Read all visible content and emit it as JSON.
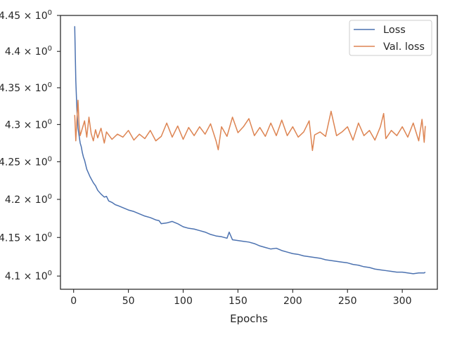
{
  "chart_data": {
    "type": "line",
    "xlabel": "Epochs",
    "ylabel": "",
    "title": "",
    "xlim": [
      -12,
      332
    ],
    "ylim": [
      4.083,
      4.45
    ],
    "x_ticks": [
      0,
      50,
      100,
      150,
      200,
      250,
      300
    ],
    "y_ticks": [
      {
        "value": 4.1,
        "base": "4.1",
        "suffix": "× 10",
        "exp": "0"
      },
      {
        "value": 4.15,
        "base": "4.15",
        "suffix": "× 10",
        "exp": "0"
      },
      {
        "value": 4.2,
        "base": "4.2",
        "suffix": "× 10",
        "exp": "0"
      },
      {
        "value": 4.25,
        "base": "4.25",
        "suffix": "× 10",
        "exp": "0"
      },
      {
        "value": 4.3,
        "base": "4.3",
        "suffix": "× 10",
        "exp": "0"
      },
      {
        "value": 4.35,
        "base": "4.35",
        "suffix": "× 10",
        "exp": "0"
      },
      {
        "value": 4.4,
        "base": "4.4",
        "suffix": "× 10",
        "exp": "0"
      },
      {
        "value": 4.45,
        "base": "4.45",
        "suffix": "× 10",
        "exp": "0"
      }
    ],
    "log_scale_y": true,
    "grid": false,
    "legend_position": "top-right",
    "series": [
      {
        "name": "Loss",
        "color": "#4c72b0",
        "x": [
          1,
          2,
          3,
          4,
          5,
          6,
          7,
          8,
          9,
          10,
          12,
          15,
          18,
          20,
          22,
          25,
          28,
          30,
          32,
          35,
          38,
          40,
          45,
          50,
          55,
          60,
          65,
          70,
          75,
          78,
          80,
          85,
          90,
          95,
          100,
          105,
          110,
          115,
          120,
          125,
          130,
          135,
          140,
          142,
          145,
          150,
          155,
          160,
          165,
          170,
          175,
          180,
          185,
          190,
          195,
          200,
          205,
          210,
          215,
          220,
          225,
          230,
          235,
          240,
          245,
          250,
          255,
          260,
          265,
          270,
          275,
          280,
          285,
          290,
          295,
          300,
          305,
          310,
          315,
          320,
          321
        ],
        "y": [
          4.435,
          4.36,
          4.32,
          4.295,
          4.285,
          4.275,
          4.27,
          4.262,
          4.256,
          4.252,
          4.24,
          4.23,
          4.222,
          4.218,
          4.212,
          4.207,
          4.203,
          4.204,
          4.198,
          4.196,
          4.193,
          4.192,
          4.189,
          4.186,
          4.184,
          4.181,
          4.178,
          4.176,
          4.173,
          4.172,
          4.168,
          4.169,
          4.171,
          4.168,
          4.164,
          4.162,
          4.161,
          4.159,
          4.157,
          4.154,
          4.152,
          4.151,
          4.149,
          4.157,
          4.147,
          4.146,
          4.145,
          4.144,
          4.142,
          4.139,
          4.137,
          4.135,
          4.136,
          4.133,
          4.131,
          4.129,
          4.128,
          4.126,
          4.125,
          4.124,
          4.123,
          4.121,
          4.12,
          4.119,
          4.118,
          4.117,
          4.115,
          4.114,
          4.112,
          4.111,
          4.109,
          4.108,
          4.107,
          4.106,
          4.105,
          4.105,
          4.104,
          4.103,
          4.104,
          4.104,
          4.105
        ]
      },
      {
        "name": "Val. loss",
        "color": "#dd8452",
        "x": [
          1,
          2,
          3,
          4,
          5,
          6,
          8,
          10,
          12,
          14,
          16,
          18,
          20,
          22,
          25,
          28,
          30,
          35,
          40,
          45,
          50,
          55,
          60,
          65,
          70,
          75,
          80,
          85,
          90,
          95,
          100,
          105,
          110,
          115,
          120,
          125,
          130,
          132,
          135,
          140,
          145,
          150,
          155,
          160,
          165,
          170,
          175,
          180,
          185,
          190,
          195,
          200,
          205,
          210,
          215,
          218,
          220,
          225,
          230,
          235,
          240,
          245,
          250,
          255,
          260,
          265,
          270,
          275,
          280,
          283,
          285,
          290,
          295,
          300,
          305,
          310,
          315,
          318,
          320,
          321
        ],
        "y": [
          4.313,
          4.278,
          4.307,
          4.333,
          4.3,
          4.285,
          4.295,
          4.305,
          4.283,
          4.31,
          4.288,
          4.278,
          4.293,
          4.282,
          4.295,
          4.275,
          4.29,
          4.28,
          4.287,
          4.283,
          4.292,
          4.279,
          4.287,
          4.281,
          4.292,
          4.278,
          4.284,
          4.302,
          4.283,
          4.298,
          4.28,
          4.296,
          4.285,
          4.297,
          4.287,
          4.301,
          4.278,
          4.266,
          4.297,
          4.284,
          4.31,
          4.289,
          4.297,
          4.308,
          4.285,
          4.296,
          4.284,
          4.302,
          4.285,
          4.306,
          4.285,
          4.297,
          4.283,
          4.29,
          4.305,
          4.265,
          4.286,
          4.29,
          4.284,
          4.318,
          4.285,
          4.29,
          4.297,
          4.279,
          4.302,
          4.285,
          4.292,
          4.279,
          4.297,
          4.315,
          4.281,
          4.292,
          4.285,
          4.297,
          4.283,
          4.302,
          4.278,
          4.307,
          4.276,
          4.298
        ]
      }
    ]
  }
}
